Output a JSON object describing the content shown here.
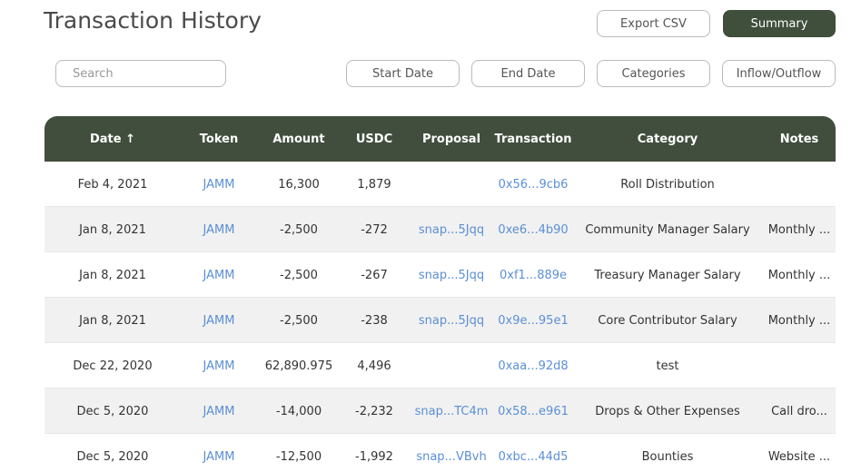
{
  "header": {
    "title": "Transaction History",
    "buttons": [
      "Export CSV",
      "Summary"
    ]
  },
  "filters": {
    "search_placeholder": "Search",
    "buttons": [
      "Start Date",
      "End Date",
      "Categories",
      "Inflow/Outflow"
    ]
  },
  "table": {
    "columns": [
      "Date ↑",
      "Token",
      "Amount",
      "USDC",
      "Proposal",
      "Transaction",
      "Category",
      "Notes"
    ],
    "rows": [
      [
        "Feb 4, 2021",
        "JAMM",
        "16,300",
        "1,879",
        null,
        "0x56...9cb6",
        "Roll Distribution",
        null
      ],
      [
        "Jan 8, 2021",
        "JAMM",
        "-2,500",
        "-272",
        "snap...5Jqq",
        "0xe6...4b90",
        "Community Manager Salary",
        "Monthly ..."
      ],
      [
        "Jan 8, 2021",
        "JAMM",
        "-2,500",
        "-267",
        "snap...5Jqq",
        "0xf1...889e",
        "Treasury Manager Salary",
        "Monthly ..."
      ],
      [
        "Jan 8, 2021",
        "JAMM",
        "-2,500",
        "-238",
        "snap...5Jqq",
        "0x9e...95e1",
        "Core Contributor Salary",
        "Monthly ..."
      ],
      [
        "Dec 22, 2020",
        "JAMM",
        "62,890.975",
        "4,496",
        null,
        "0xaa...92d8",
        "test",
        null
      ],
      [
        "Dec 5, 2020",
        "JAMM",
        "-14,000",
        "-2,232",
        "snap...TC4m",
        "0x58...e961",
        "Drops & Other Expenses",
        "Call dro..."
      ],
      [
        "Dec 5, 2020",
        "JAMM",
        "-12,500",
        "-1,992",
        "snap...VBvh",
        "0xbc...44d5",
        "Bounties",
        "Website ..."
      ]
    ]
  }
}
